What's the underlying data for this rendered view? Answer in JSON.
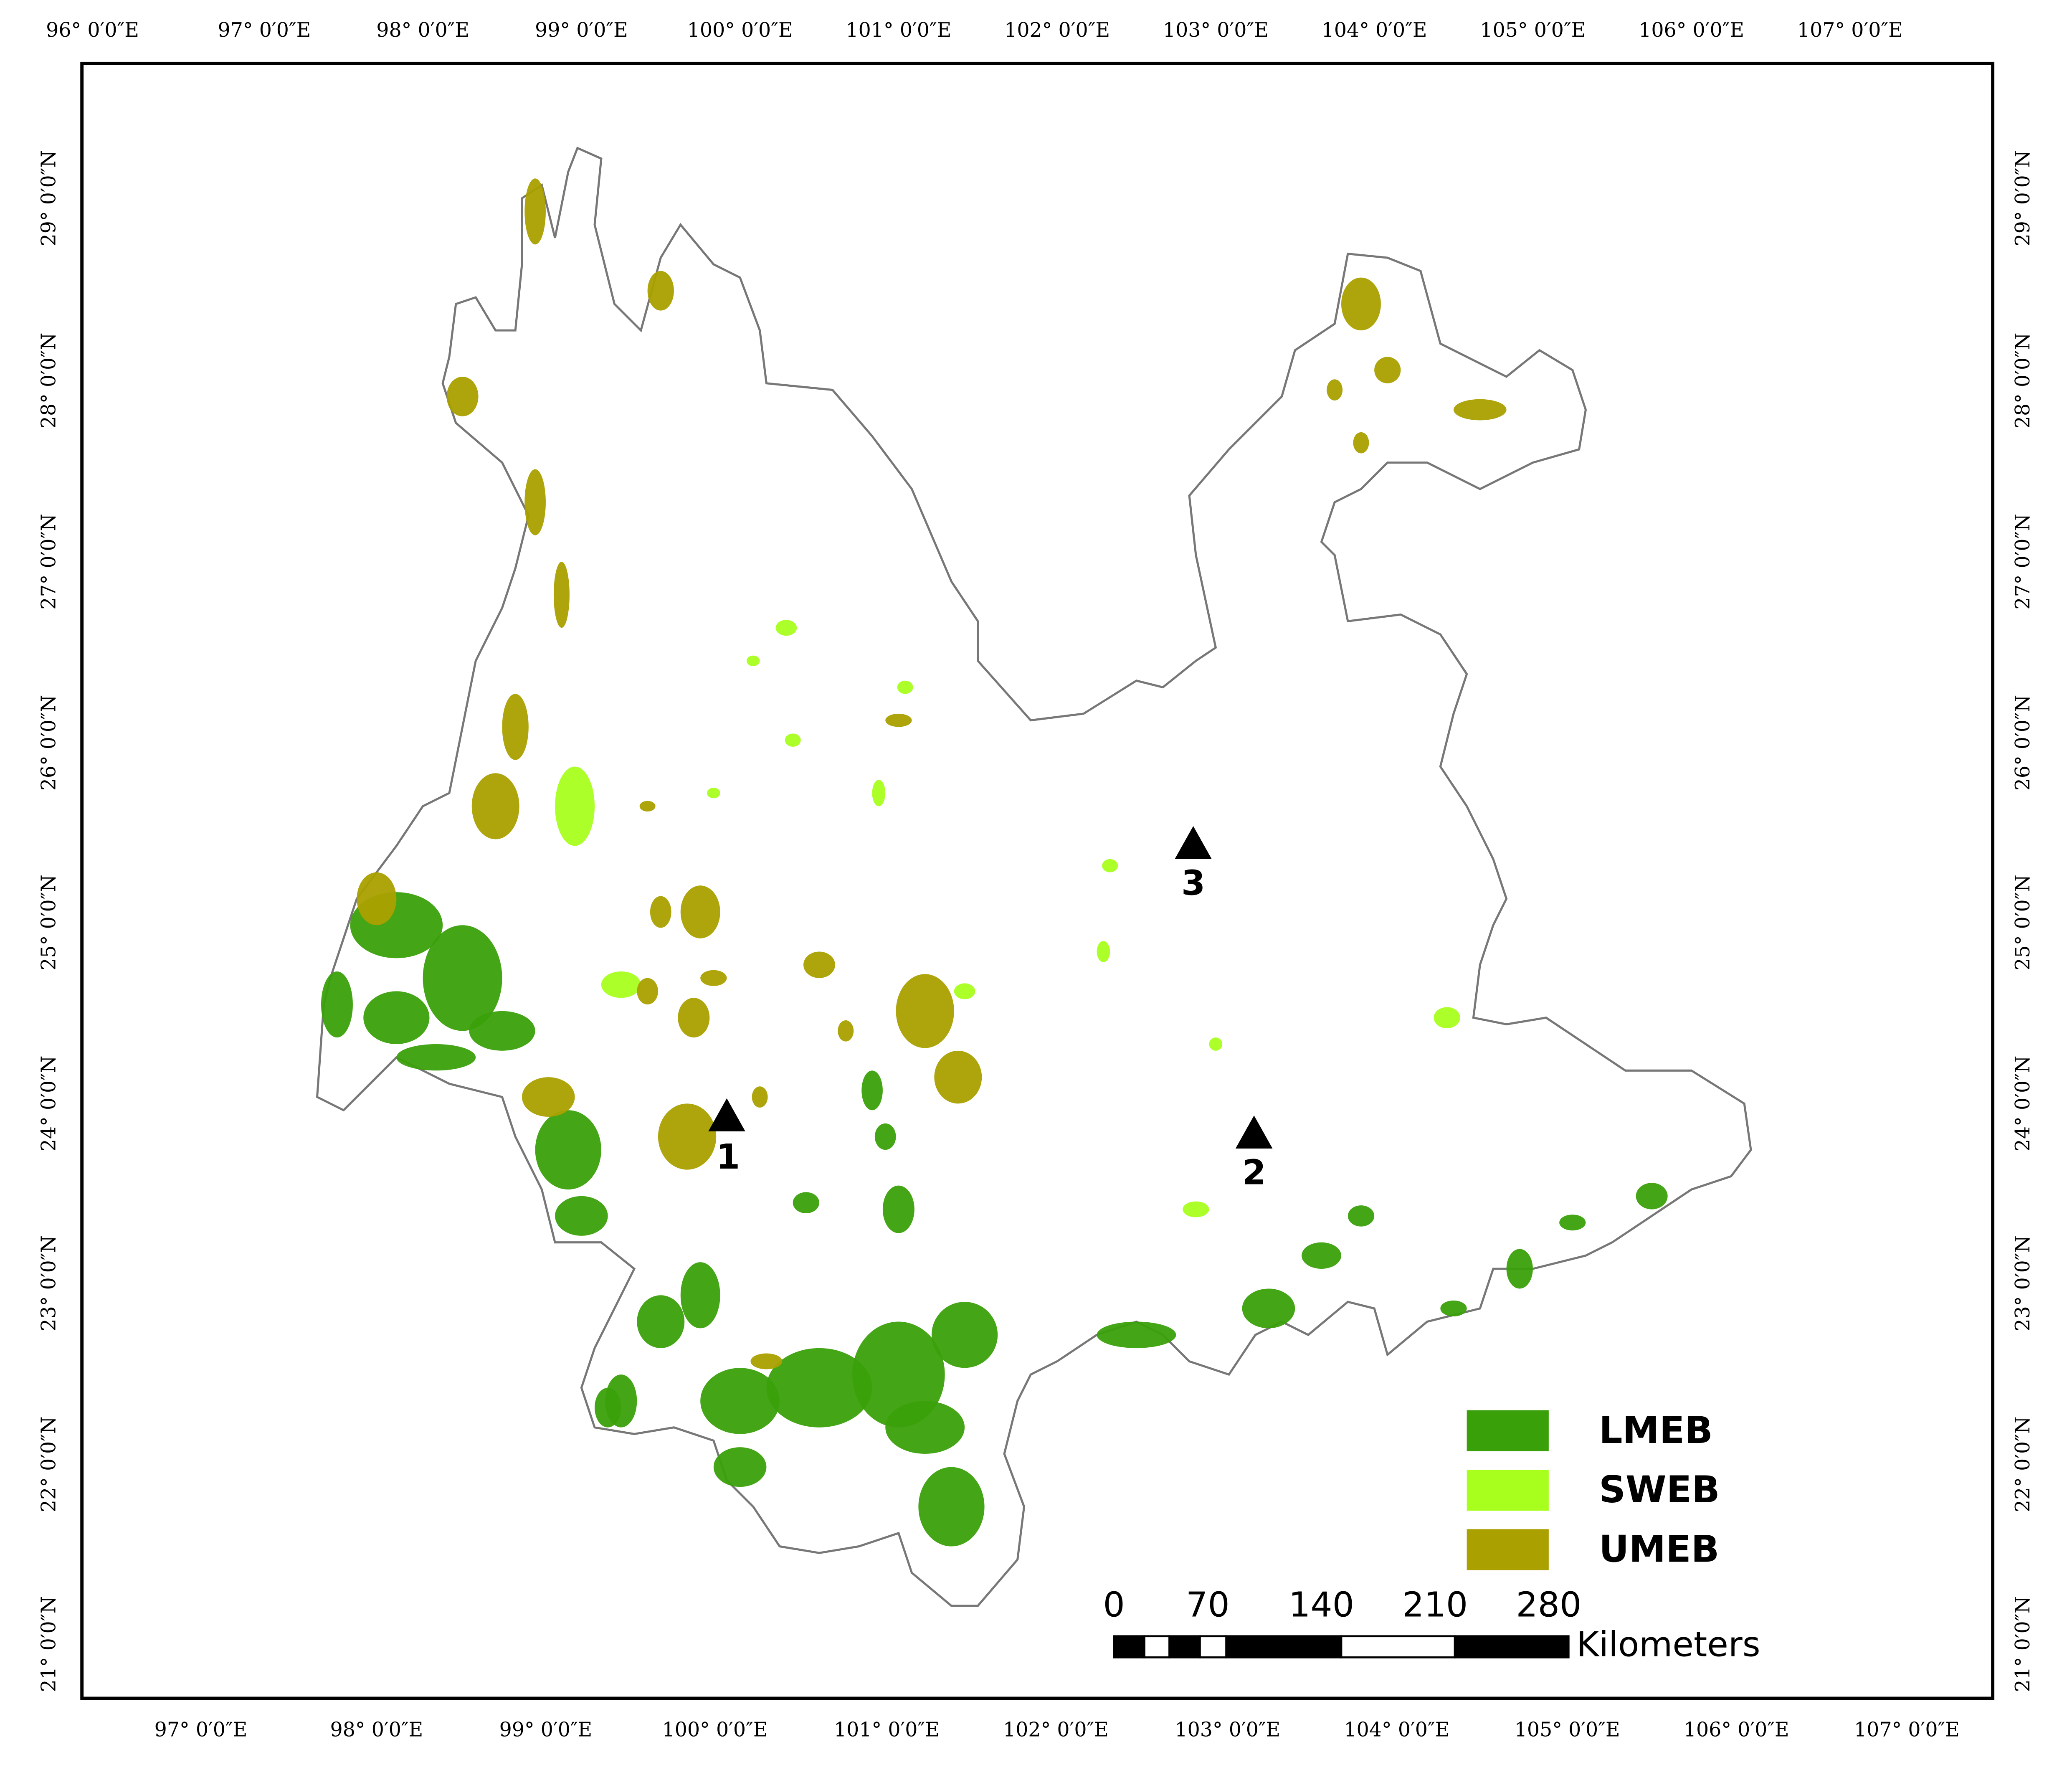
{
  "map": {
    "top_labels": [
      "96° 0′0″E",
      "97° 0′0″E",
      "98° 0′0″E",
      "99° 0′0″E",
      "100° 0′0″E",
      "101° 0′0″E",
      "102° 0′0″E",
      "103° 0′0″E",
      "104° 0′0″E",
      "105° 0′0″E",
      "106° 0′0″E",
      "107° 0′0″E"
    ],
    "bottom_labels": [
      "97° 0′0″E",
      "98° 0′0″E",
      "99° 0′0″E",
      "100° 0′0″E",
      "101° 0′0″E",
      "102° 0′0″E",
      "103° 0′0″E",
      "104° 0′0″E",
      "105° 0′0″E",
      "106° 0′0″E",
      "107° 0′0″E"
    ],
    "left_labels": [
      "29° 0′0″N",
      "28° 0′0″N",
      "27° 0′0″N",
      "26° 0′0″N",
      "25° 0′0″N",
      "24° 0′0″N",
      "23° 0′0″N",
      "22° 0′0″N",
      "21° 0′0″N"
    ],
    "legend": [
      {
        "name": "LMEB",
        "color": "#3aa00a"
      },
      {
        "name": "SWEB",
        "color": "#a8ff1e"
      },
      {
        "name": "UMEB",
        "color": "#aaa000"
      }
    ],
    "scale_bar": {
      "ticks": [
        "0",
        "70",
        "140",
        "210",
        "280"
      ],
      "unit": "Kilometers"
    },
    "sites": [
      "1",
      "2",
      "3"
    ]
  }
}
